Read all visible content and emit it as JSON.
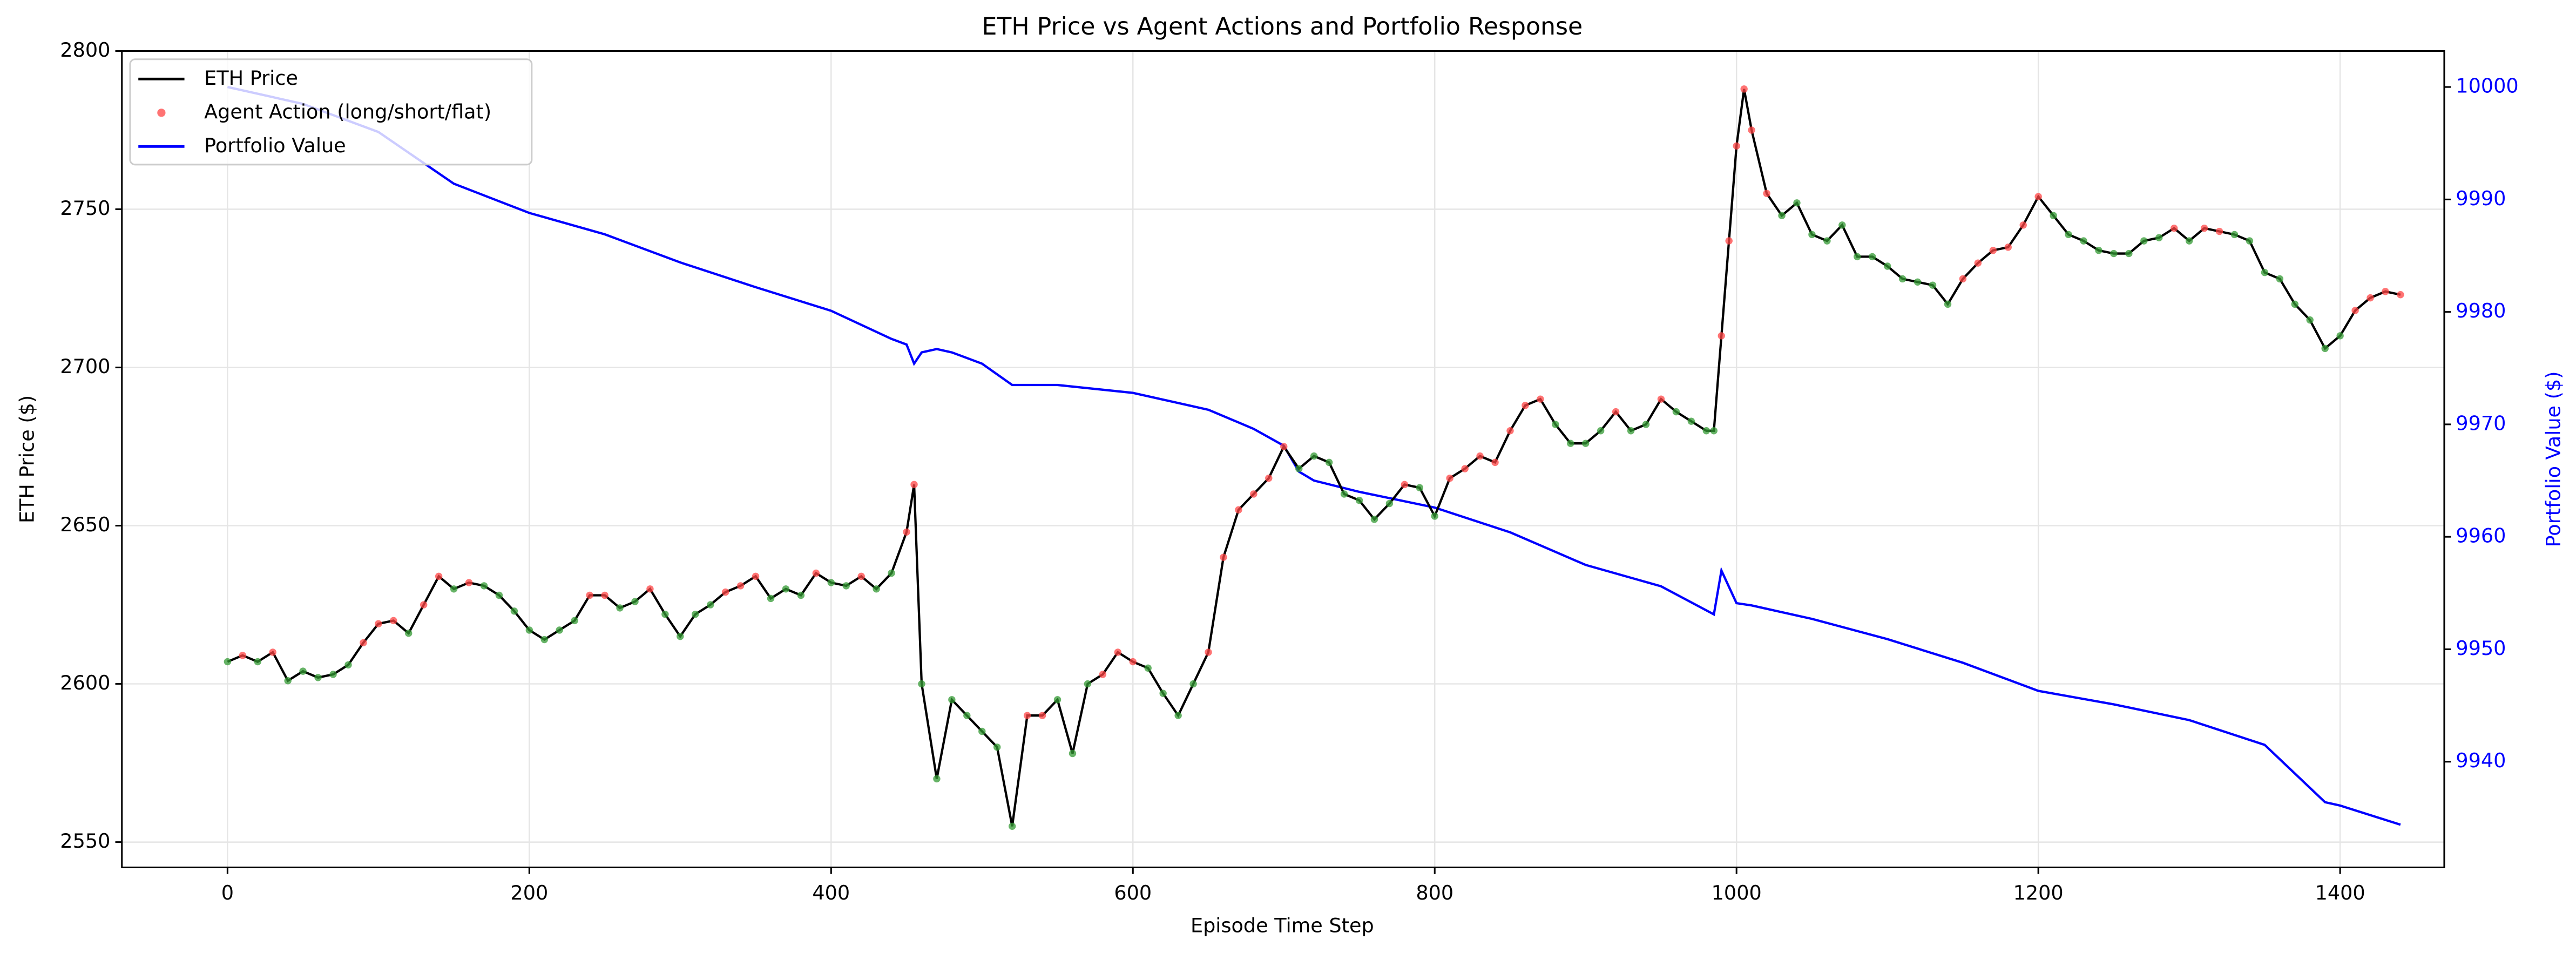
{
  "chart_data": {
    "type": "line",
    "title": "ETH Price vs Agent Actions and Portfolio Response",
    "xlabel": "Episode Time Step",
    "ylabel": "ETH Price ($)",
    "y2label": "Portfolio Value ($)",
    "xlim": [
      -70,
      1469
    ],
    "xticks": [
      0,
      200,
      400,
      600,
      800,
      1000,
      1200,
      1400
    ],
    "ylim": [
      2542,
      2800
    ],
    "yticks": [
      2550,
      2600,
      2650,
      2700,
      2750,
      2800
    ],
    "y2lim": [
      9930.6,
      10003.2
    ],
    "y2ticks": [
      9940,
      9950,
      9960,
      9970,
      9980,
      9990,
      10000
    ],
    "grid": true,
    "legend": "upper left",
    "series": [
      {
        "name": "ETH Price",
        "color": "#000000",
        "x": [
          0,
          10,
          20,
          30,
          40,
          50,
          60,
          70,
          80,
          90,
          100,
          110,
          120,
          130,
          140,
          150,
          160,
          170,
          180,
          190,
          200,
          210,
          220,
          230,
          240,
          250,
          260,
          270,
          280,
          290,
          300,
          310,
          320,
          330,
          340,
          350,
          360,
          370,
          380,
          390,
          400,
          410,
          420,
          430,
          440,
          450,
          455,
          460,
          470,
          480,
          490,
          500,
          510,
          520,
          530,
          540,
          550,
          560,
          570,
          580,
          590,
          600,
          610,
          620,
          630,
          640,
          650,
          660,
          670,
          680,
          690,
          700,
          710,
          720,
          730,
          740,
          750,
          760,
          770,
          780,
          790,
          800,
          810,
          820,
          830,
          840,
          850,
          860,
          870,
          880,
          890,
          900,
          910,
          920,
          930,
          940,
          950,
          960,
          970,
          980,
          985,
          990,
          995,
          1000,
          1005,
          1010,
          1020,
          1030,
          1040,
          1050,
          1060,
          1070,
          1080,
          1090,
          1100,
          1110,
          1120,
          1130,
          1140,
          1150,
          1160,
          1170,
          1180,
          1190,
          1200,
          1210,
          1220,
          1230,
          1240,
          1250,
          1260,
          1270,
          1280,
          1290,
          1300,
          1310,
          1320,
          1330,
          1340,
          1350,
          1360,
          1370,
          1380,
          1390,
          1400,
          1410,
          1420,
          1430,
          1440
        ],
        "values": [
          2607,
          2609,
          2607,
          2610,
          2601,
          2604,
          2602,
          2603,
          2606,
          2613,
          2619,
          2620,
          2616,
          2625,
          2634,
          2630,
          2632,
          2631,
          2628,
          2623,
          2617,
          2614,
          2617,
          2620,
          2628,
          2628,
          2624,
          2626,
          2630,
          2622,
          2615,
          2622,
          2625,
          2629,
          2631,
          2634,
          2627,
          2630,
          2628,
          2635,
          2632,
          2631,
          2634,
          2630,
          2635,
          2648,
          2663,
          2600,
          2570,
          2595,
          2590,
          2585,
          2580,
          2555,
          2590,
          2590,
          2595,
          2578,
          2600,
          2603,
          2610,
          2607,
          2605,
          2597,
          2590,
          2600,
          2610,
          2640,
          2655,
          2660,
          2665,
          2675,
          2668,
          2672,
          2670,
          2660,
          2658,
          2652,
          2657,
          2663,
          2662,
          2653,
          2665,
          2668,
          2672,
          2670,
          2680,
          2688,
          2690,
          2682,
          2676,
          2676,
          2680,
          2686,
          2680,
          2682,
          2690,
          2686,
          2683,
          2680,
          2680,
          2710,
          2740,
          2770,
          2788,
          2775,
          2755,
          2748,
          2752,
          2742,
          2740,
          2745,
          2735,
          2735,
          2732,
          2728,
          2727,
          2726,
          2720,
          2728,
          2733,
          2737,
          2738,
          2745,
          2754,
          2748,
          2742,
          2740,
          2737,
          2736,
          2736,
          2740,
          2741,
          2744,
          2740,
          2744,
          2743,
          2742,
          2740,
          2730,
          2728,
          2720,
          2715,
          2706,
          2710,
          2718,
          2722,
          2724,
          2723
        ]
      },
      {
        "name": "Agent Action (long/short/flat)",
        "type": "scatter",
        "color": "#f44",
        "point_colors": [
          "#393",
          "#f44",
          "#393",
          "#f44",
          "#393",
          "#393",
          "#393",
          "#393",
          "#393",
          "#f44",
          "#f44",
          "#f44",
          "#393",
          "#f44",
          "#f44",
          "#393",
          "#f44",
          "#393",
          "#393",
          "#393",
          "#393",
          "#393",
          "#393",
          "#393",
          "#f44",
          "#f44",
          "#393",
          "#393",
          "#f44",
          "#393",
          "#393",
          "#393",
          "#393",
          "#f44",
          "#f44",
          "#f44",
          "#393",
          "#393",
          "#393",
          "#f44",
          "#393",
          "#393",
          "#f44",
          "#393",
          "#393",
          "#f44",
          "#f44",
          "#393",
          "#393",
          "#393",
          "#393",
          "#393",
          "#393",
          "#393",
          "#f44",
          "#f44",
          "#393",
          "#393",
          "#393",
          "#f44",
          "#f44",
          "#f44",
          "#393",
          "#393",
          "#393",
          "#393",
          "#f44",
          "#f44",
          "#f44",
          "#f44",
          "#f44",
          "#f44",
          "#393",
          "#393",
          "#393",
          "#393",
          "#393",
          "#393",
          "#393",
          "#f44",
          "#393",
          "#393",
          "#f44",
          "#f44",
          "#f44",
          "#f44",
          "#f44",
          "#f44",
          "#f44",
          "#393",
          "#393",
          "#393",
          "#393",
          "#f44",
          "#393",
          "#393",
          "#f44",
          "#393",
          "#393",
          "#393",
          "#393",
          "#f44",
          "#f44",
          "#f44",
          "#f44",
          "#f44",
          "#f44",
          "#393",
          "#393",
          "#393",
          "#393",
          "#393",
          "#393",
          "#393",
          "#393",
          "#393",
          "#393",
          "#393",
          "#393",
          "#f44",
          "#f44",
          "#f44",
          "#f44",
          "#f44",
          "#f44",
          "#393",
          "#393",
          "#393",
          "#393",
          "#393",
          "#393",
          "#393",
          "#393",
          "#f44",
          "#393",
          "#f44",
          "#f44",
          "#393",
          "#393",
          "#393",
          "#393",
          "#393",
          "#393",
          "#393",
          "#393",
          "#f44",
          "#f44",
          "#f44",
          "#f44"
        ]
      },
      {
        "name": "Portfolio Value",
        "color": "#0000ff",
        "axis": "y2",
        "x": [
          0,
          50,
          100,
          150,
          200,
          250,
          300,
          350,
          400,
          440,
          450,
          455,
          460,
          470,
          480,
          500,
          520,
          550,
          600,
          650,
          680,
          700,
          710,
          720,
          750,
          800,
          850,
          900,
          950,
          985,
          990,
          1000,
          1010,
          1050,
          1100,
          1150,
          1200,
          1250,
          1300,
          1350,
          1390,
          1400,
          1440
        ],
        "values": [
          10000,
          9998.5,
          9996,
          9991.4,
          9988.8,
          9986.9,
          9984.4,
          9982.2,
          9980.1,
          9977.6,
          9977.1,
          9975.4,
          9976.4,
          9976.7,
          9976.4,
          9975.4,
          9973.5,
          9973.5,
          9972.8,
          9971.3,
          9969.6,
          9968.1,
          9965.8,
          9965,
          9964,
          9962.6,
          9960.4,
          9957.5,
          9955.6,
          9953.1,
          9957,
          9954.1,
          9953.9,
          9952.7,
          9950.9,
          9948.8,
          9946.3,
          9945.1,
          9943.7,
          9941.5,
          9936.4,
          9936.1,
          9934.4
        ]
      }
    ]
  }
}
